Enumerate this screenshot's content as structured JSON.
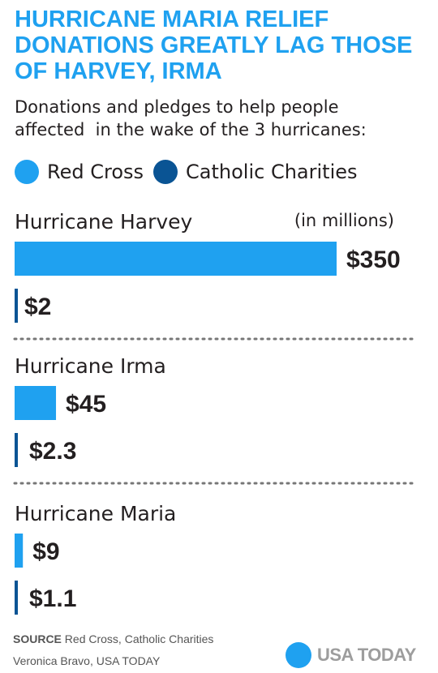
{
  "title_lines": [
    "HURRICANE MARIA RELIEF",
    "DONATIONS GREATLY LAG THOSE",
    "OF HARVEY, IRMA"
  ],
  "subtitle_lines": [
    "Donations and pledges to help people",
    "affected  in the wake of the 3 hurricanes:"
  ],
  "colors": {
    "accent": "#1fa1f0",
    "red_cross": "#1fa1f0",
    "catholic_charities": "#0a5494",
    "divider": "#777777",
    "brand_gray": "#9d9d9d"
  },
  "chart_data": {
    "type": "bar",
    "orientation": "horizontal",
    "units_label": "(in millions)",
    "legend": [
      {
        "name": "Red Cross",
        "color": "#1fa1f0"
      },
      {
        "name": "Catholic Charities",
        "color": "#0a5494"
      }
    ],
    "value_prefix": "$",
    "categories": [
      "Hurricane Harvey",
      "Hurricane Irma",
      "Hurricane Maria"
    ],
    "series": [
      {
        "name": "Red Cross",
        "values": [
          350,
          45,
          9
        ],
        "labels": [
          "$350",
          "$45",
          "$9"
        ]
      },
      {
        "name": "Catholic Charities",
        "values": [
          2,
          2.3,
          1.1
        ],
        "labels": [
          "$2",
          "$2.3",
          "$1.1"
        ]
      }
    ]
  },
  "footer": {
    "source_label": "SOURCE",
    "source_text": "Red Cross, Catholic Charities",
    "credit": "Veronica Bravo, USA TODAY",
    "brand": "USA TODAY"
  }
}
